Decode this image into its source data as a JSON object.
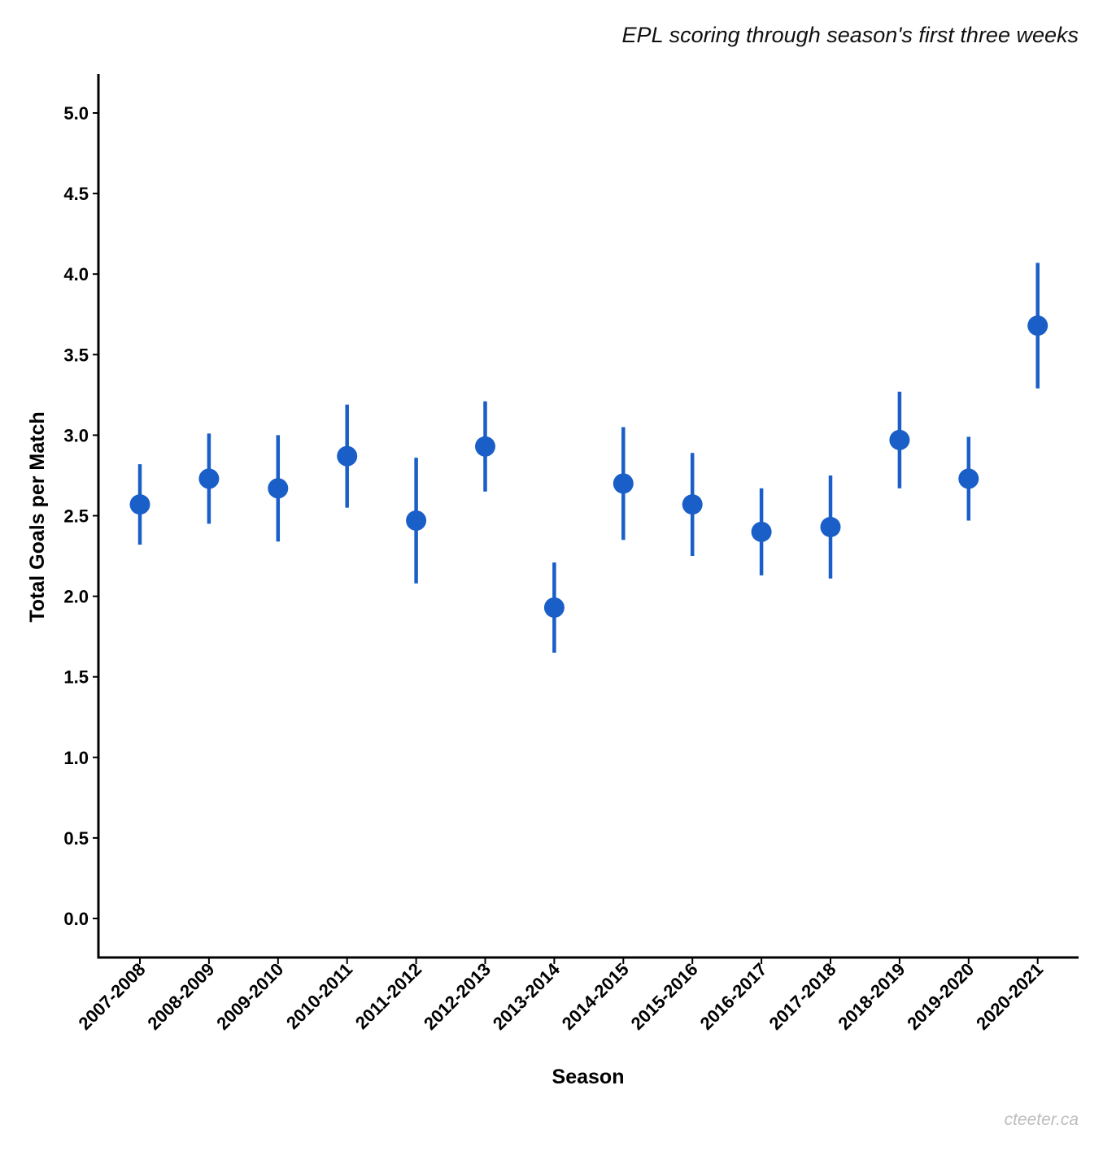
{
  "chart_data": {
    "type": "scatter",
    "title": "EPL scoring through season's first three weeks",
    "xlabel": "Season",
    "ylabel": "Total Goals per Match",
    "ylim": [
      -0.25,
      5.25
    ],
    "y_ticks": [
      "0.0",
      "0.5",
      "1.0",
      "1.5",
      "2.0",
      "2.5",
      "3.0",
      "3.5",
      "4.0",
      "4.5",
      "5.0"
    ],
    "grid": false,
    "legend": "none",
    "categories": [
      "2007-2008",
      "2008-2009",
      "2009-2010",
      "2010-2011",
      "2011-2012",
      "2012-2013",
      "2013-2014",
      "2014-2015",
      "2015-2016",
      "2016-2017",
      "2017-2018",
      "2018-2019",
      "2019-2020",
      "2020-2021"
    ],
    "values": [
      2.57,
      2.73,
      2.67,
      2.87,
      2.47,
      2.93,
      1.93,
      2.7,
      2.57,
      2.4,
      2.43,
      2.97,
      2.73,
      3.68
    ],
    "error_low": [
      2.32,
      2.45,
      2.34,
      2.55,
      2.08,
      2.65,
      1.65,
      2.35,
      2.25,
      2.13,
      2.11,
      2.67,
      2.47,
      3.29
    ],
    "error_high": [
      2.82,
      3.01,
      3.0,
      3.19,
      2.86,
      3.21,
      2.21,
      3.05,
      2.89,
      2.67,
      2.75,
      3.27,
      2.99,
      4.07
    ],
    "point_color": "#1a5fc8"
  },
  "watermark": "cteeter.ca"
}
